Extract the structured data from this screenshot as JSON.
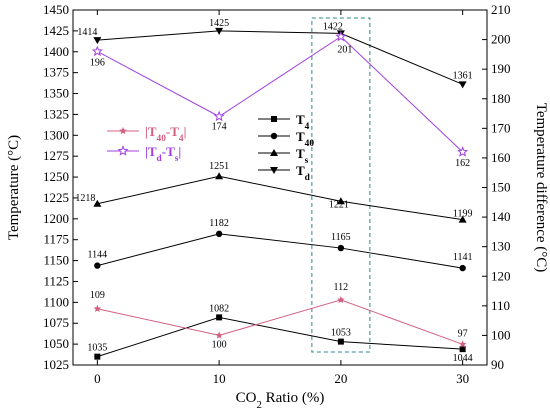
{
  "chart_data": {
    "type": "line",
    "x": [
      0,
      10,
      20,
      30
    ],
    "xlabel": "CO<sub>2</sub> Ratio (%)",
    "ylabel_left": "Temperature (°C)",
    "ylabel_right": "Temperature difference (°C)",
    "xlim": [
      -2,
      32
    ],
    "ylim_left": [
      1025,
      1450
    ],
    "ylim_right": [
      90,
      210
    ],
    "left_ticks": [
      1025,
      1050,
      1075,
      1100,
      1125,
      1150,
      1175,
      1200,
      1225,
      1250,
      1275,
      1300,
      1325,
      1350,
      1375,
      1400,
      1425,
      1450
    ],
    "right_ticks": [
      90,
      100,
      110,
      120,
      130,
      140,
      150,
      160,
      170,
      180,
      190,
      200,
      210
    ],
    "x_ticks": [
      0,
      10,
      20,
      30
    ],
    "highlight_box": {
      "x": 20
    },
    "series": [
      {
        "name": "T<sub>4</sub>",
        "axis": "left",
        "color": "#000000",
        "marker": "square",
        "values": [
          1035,
          1082,
          1053,
          1044
        ]
      },
      {
        "name": "T<sub>40</sub>",
        "axis": "left",
        "color": "#000000",
        "marker": "circle",
        "values": [
          1144,
          1182,
          1165,
          1141
        ]
      },
      {
        "name": "T<sub>s</sub>",
        "axis": "left",
        "color": "#000000",
        "marker": "triangle-up",
        "values": [
          1218,
          1251,
          1221,
          1199
        ]
      },
      {
        "name": "T<sub>d</sub>",
        "axis": "left",
        "color": "#000000",
        "marker": "triangle-down",
        "values": [
          1414,
          1425,
          1422,
          1361
        ]
      },
      {
        "name": "|T<sub>40</sub>-T<sub>4</sub>|",
        "axis": "right",
        "color": "#d46080",
        "marker": "star-filled",
        "values": [
          109,
          100,
          112,
          97
        ]
      },
      {
        "name": "|T<sub>d</sub>-T<sub>s</sub>|",
        "axis": "right",
        "color": "#a040e0",
        "marker": "star-open",
        "values": [
          196,
          174,
          201,
          162
        ]
      }
    ]
  }
}
